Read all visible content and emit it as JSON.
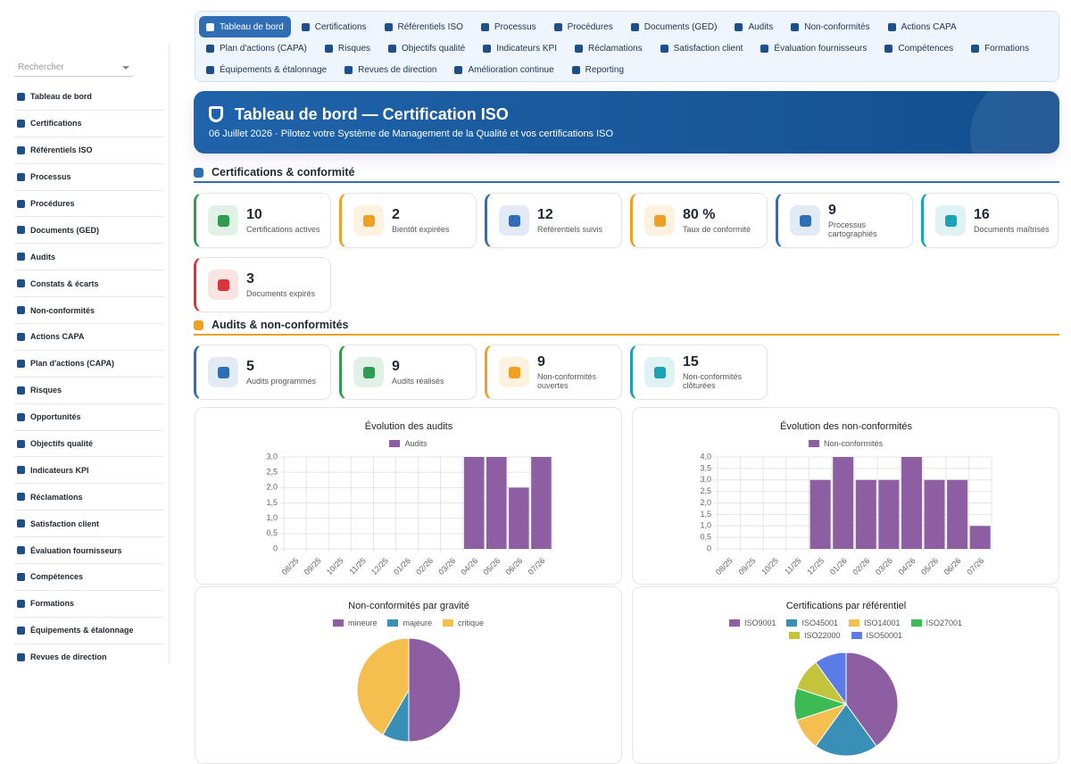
{
  "sidebar": {
    "search": "Rechercher",
    "items": [
      "Tableau de bord",
      "Certifications",
      "Référentiels ISO",
      "Processus",
      "Procédures",
      "Documents (GED)",
      "Audits",
      "Constats & écarts",
      "Non-conformités",
      "Actions CAPA",
      "Plan d'actions (CAPA)",
      "Risques",
      "Opportunités",
      "Objectifs qualité",
      "Indicateurs KPI",
      "Réclamations",
      "Satisfaction client",
      "Évaluation fournisseurs",
      "Compétences",
      "Formations",
      "Équipements & étalonnage",
      "Revues de direction"
    ]
  },
  "nav": {
    "items": [
      "Tableau de bord",
      "Certifications",
      "Référentiels ISO",
      "Processus",
      "Procédures",
      "Documents (GED)",
      "Audits",
      "Non-conformités",
      "Actions CAPA",
      "Plan d'actions (CAPA)",
      "Risques",
      "Objectifs qualité",
      "Indicateurs KPI",
      "Réclamations",
      "Satisfaction client",
      "Évaluation fournisseurs",
      "Compétences",
      "Formations",
      "Équipements & étalonnage",
      "Revues de direction",
      "Amélioration continue",
      "Reporting"
    ]
  },
  "header": {
    "title": "Tableau de bord — Certification ISO",
    "subtitle": "06 Juillet 2026 · Pilotez votre Système de Management de la Qualité et vos certifications ISO"
  },
  "sections": [
    {
      "title": "Certifications & conformité",
      "color": "#2f6db5",
      "cards": [
        {
          "value": 10,
          "label": "Certifications actives",
          "color": "#2e9d4f"
        },
        {
          "value": 2,
          "label": "Bientôt expirées",
          "color": "#f0a020"
        },
        {
          "value": 12,
          "label": "Référentiels suivis",
          "color": "#2f6db5"
        },
        {
          "value": "80 %",
          "label": "Taux de conformité",
          "color": "#f0a020"
        },
        {
          "value": 9,
          "label": "Processus cartographiés",
          "color": "#2f6db5"
        },
        {
          "value": 16,
          "label": "Documents maîtrisés",
          "color": "#1aa3b8"
        },
        {
          "value": 3,
          "label": "Documents expirés",
          "color": "#d9343a"
        }
      ]
    },
    {
      "title": "Audits & non-conformités",
      "color": "#f0a020",
      "cards": [
        {
          "value": 5,
          "label": "Audits programmés",
          "color": "#2f6db5"
        },
        {
          "value": 9,
          "label": "Audits réalisés",
          "color": "#2e9d4f"
        },
        {
          "value": 9,
          "label": "Non-conformités ouvertes",
          "color": "#f0a020"
        },
        {
          "value": 15,
          "label": "Non-conformités clôturées",
          "color": "#1aa3b8"
        }
      ]
    }
  ],
  "chart_data": [
    {
      "type": "bar",
      "title": "Évolution des audits",
      "categories": [
        "08/25",
        "09/25",
        "10/25",
        "11/25",
        "12/25",
        "01/26",
        "02/26",
        "03/26",
        "04/26",
        "05/26",
        "06/26",
        "07/26"
      ],
      "series": [
        {
          "name": "Audits",
          "color": "#8e5ea2",
          "values": [
            0,
            0,
            0,
            0,
            0,
            0,
            0,
            0,
            3,
            3,
            2,
            3
          ]
        }
      ],
      "ylim": [
        0,
        3
      ],
      "yticks": [
        0,
        {
          "value": 0.5,
          "label": "0,5"
        },
        {
          "value": 1,
          "label": "1,0"
        },
        {
          "value": 1.5,
          "label": "1,5"
        },
        {
          "value": 2,
          "label": "2,0"
        },
        {
          "value": 2.5,
          "label": "2,5"
        },
        {
          "value": 3,
          "label": "3,0"
        }
      ],
      "grid": true
    },
    {
      "type": "bar",
      "title": "Évolution des non-conformités",
      "categories": [
        "08/25",
        "09/25",
        "10/25",
        "11/25",
        "12/25",
        "01/26",
        "02/26",
        "03/26",
        "04/26",
        "05/26",
        "06/26",
        "07/26"
      ],
      "series": [
        {
          "name": "Non-conformités",
          "color": "#8e5ea2",
          "values": [
            0,
            0,
            0,
            0,
            3,
            4,
            3,
            3,
            4,
            3,
            3,
            1
          ]
        }
      ],
      "ylim": [
        0,
        4
      ],
      "yticks": [
        0,
        {
          "value": 0.5,
          "label": "0,5"
        },
        {
          "value": 1,
          "label": "1,0"
        },
        {
          "value": 1.5,
          "label": "1,5"
        },
        {
          "value": 2,
          "label": "2,0"
        },
        {
          "value": 2.5,
          "label": "2,5"
        },
        {
          "value": 3,
          "label": "3,0"
        },
        {
          "value": 3.5,
          "label": "3,5"
        },
        {
          "value": 4,
          "label": "4,0"
        }
      ],
      "grid": true
    },
    {
      "type": "pie",
      "title": "Non-conformités par gravité",
      "categories": [
        "mineure",
        "majeure",
        "critique"
      ],
      "values": [
        12,
        2,
        10
      ],
      "colors": [
        "#8e5ea2",
        "#3a8fb7",
        "#f5bf4f"
      ]
    },
    {
      "type": "pie",
      "title": "Certifications par référentiel",
      "categories": [
        "ISO9001",
        "ISO45001",
        "ISO14001",
        "ISO27001",
        "ISO22000",
        "ISO50001"
      ],
      "values": [
        4,
        2,
        1,
        1,
        1,
        1
      ],
      "colors": [
        "#8e5ea2",
        "#3a8fb7",
        "#f5bf4f",
        "#3cba54",
        "#c4c43c",
        "#5b7be8"
      ]
    }
  ]
}
